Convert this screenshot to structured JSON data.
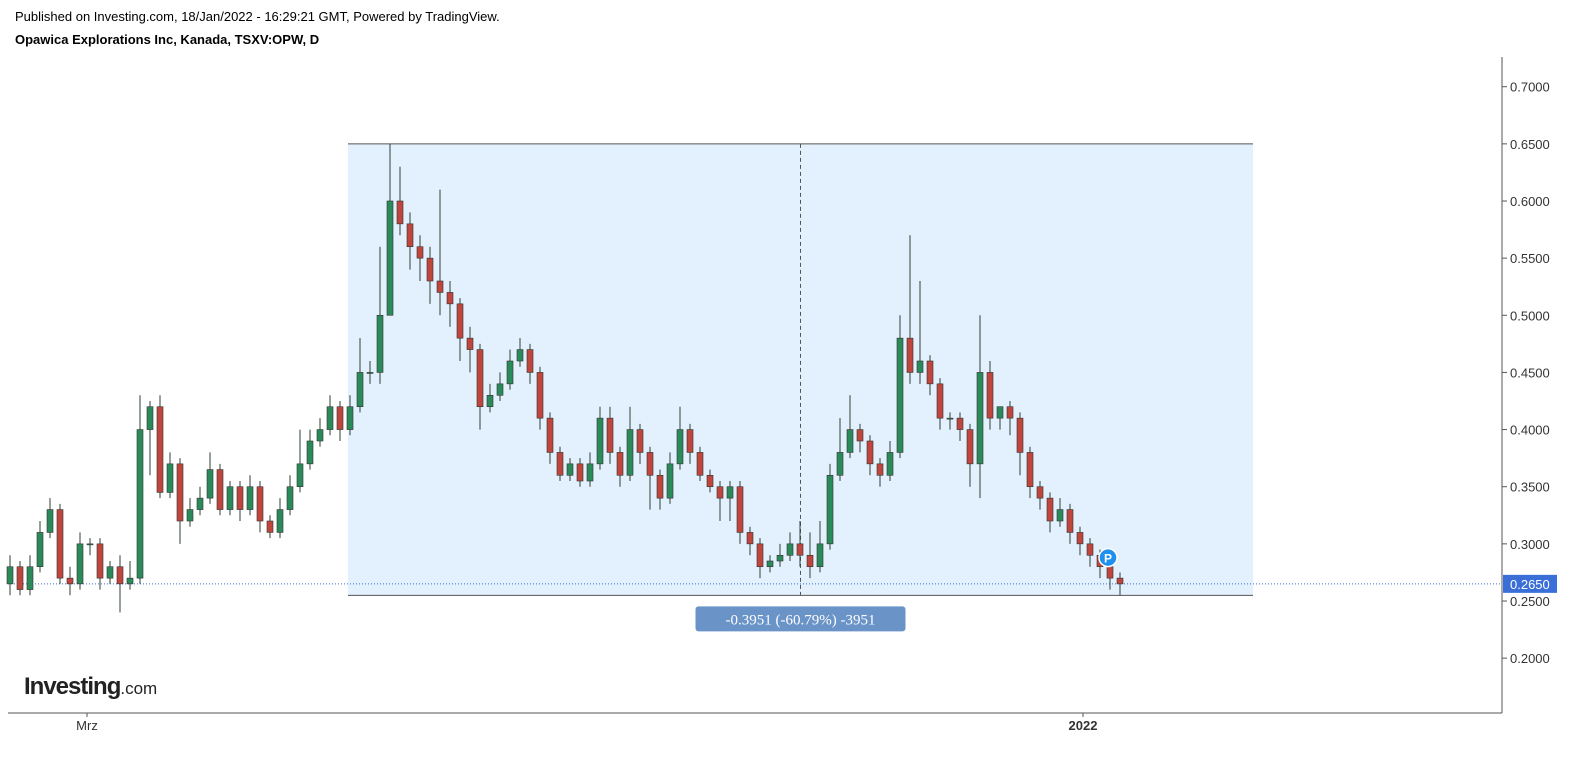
{
  "header": {
    "published": "Published on Investing.com, 18/Jan/2022 - 16:29:21 GMT, Powered by TradingView.",
    "title": "Opawica Explorations Inc, Kanada, TSXV:OPW, D"
  },
  "logo": {
    "brand": "Investing",
    "suffix": ".com"
  },
  "chart_data": {
    "type": "candlestick",
    "up_color": "#2a8a5a",
    "down_color": "#c0453c",
    "xlim": [
      -0.2,
      149.2
    ],
    "xticks": [
      {
        "value": 7.7,
        "label": "Mrz"
      },
      {
        "value": 107.3,
        "label": "2022"
      }
    ],
    "ylim": [
      0.152,
      0.726
    ],
    "yticks": [
      {
        "value": 0.2,
        "label": "0.2000"
      },
      {
        "value": 0.25,
        "label": "0.2500"
      },
      {
        "value": 0.3,
        "label": "0.3000"
      },
      {
        "value": 0.35,
        "label": "0.3500"
      },
      {
        "value": 0.4,
        "label": "0.4000"
      },
      {
        "value": 0.45,
        "label": "0.4500"
      },
      {
        "value": 0.5,
        "label": "0.5000"
      },
      {
        "value": 0.55,
        "label": "0.5500"
      },
      {
        "value": 0.6,
        "label": "0.6000"
      },
      {
        "value": 0.65,
        "label": "0.6500"
      },
      {
        "value": 0.7,
        "label": "0.7000"
      }
    ],
    "open": [
      0.265,
      0.28,
      0.26,
      0.28,
      0.31,
      0.33,
      0.27,
      0.265,
      0.3,
      0.3,
      0.27,
      0.28,
      0.265,
      0.27,
      0.4,
      0.42,
      0.345,
      0.37,
      0.32,
      0.33,
      0.34,
      0.365,
      0.33,
      0.35,
      0.33,
      0.35,
      0.32,
      0.31,
      0.33,
      0.35,
      0.37,
      0.39,
      0.4,
      0.42,
      0.4,
      0.42,
      0.45,
      0.45,
      0.5,
      0.6,
      0.58,
      0.56,
      0.55,
      0.53,
      0.52,
      0.51,
      0.48,
      0.47,
      0.42,
      0.43,
      0.44,
      0.46,
      0.47,
      0.45,
      0.41,
      0.38,
      0.36,
      0.37,
      0.355,
      0.37,
      0.41,
      0.38,
      0.36,
      0.4,
      0.38,
      0.36,
      0.34,
      0.37,
      0.4,
      0.38,
      0.36,
      0.35,
      0.34,
      0.35,
      0.31,
      0.3,
      0.28,
      0.285,
      0.29,
      0.3,
      0.29,
      0.28,
      0.3,
      0.36,
      0.38,
      0.4,
      0.39,
      0.37,
      0.36,
      0.38,
      0.48,
      0.45,
      0.46,
      0.44,
      0.41,
      0.41,
      0.4,
      0.37,
      0.45,
      0.41,
      0.42,
      0.41,
      0.38,
      0.35,
      0.34,
      0.32,
      0.33,
      0.31,
      0.3,
      0.29,
      0.28,
      0.27
    ],
    "high": [
      0.29,
      0.285,
      0.29,
      0.32,
      0.34,
      0.335,
      0.28,
      0.31,
      0.305,
      0.305,
      0.285,
      0.29,
      0.285,
      0.43,
      0.425,
      0.43,
      0.38,
      0.375,
      0.34,
      0.35,
      0.38,
      0.37,
      0.355,
      0.355,
      0.36,
      0.355,
      0.325,
      0.34,
      0.36,
      0.4,
      0.4,
      0.41,
      0.43,
      0.425,
      0.43,
      0.48,
      0.46,
      0.56,
      0.65,
      0.63,
      0.59,
      0.57,
      0.56,
      0.61,
      0.53,
      0.515,
      0.49,
      0.475,
      0.44,
      0.45,
      0.47,
      0.48,
      0.475,
      0.455,
      0.415,
      0.385,
      0.375,
      0.375,
      0.38,
      0.42,
      0.42,
      0.385,
      0.42,
      0.405,
      0.385,
      0.365,
      0.38,
      0.42,
      0.405,
      0.385,
      0.365,
      0.355,
      0.355,
      0.355,
      0.315,
      0.305,
      0.29,
      0.3,
      0.31,
      0.32,
      0.31,
      0.32,
      0.37,
      0.41,
      0.43,
      0.405,
      0.395,
      0.375,
      0.39,
      0.5,
      0.57,
      0.53,
      0.465,
      0.445,
      0.415,
      0.415,
      0.405,
      0.5,
      0.46,
      0.42,
      0.425,
      0.415,
      0.385,
      0.355,
      0.345,
      0.34,
      0.335,
      0.315,
      0.305,
      0.295,
      0.285,
      0.275
    ],
    "low": [
      0.255,
      0.255,
      0.255,
      0.275,
      0.305,
      0.265,
      0.255,
      0.26,
      0.29,
      0.26,
      0.265,
      0.24,
      0.26,
      0.265,
      0.36,
      0.34,
      0.34,
      0.3,
      0.315,
      0.325,
      0.335,
      0.325,
      0.325,
      0.32,
      0.325,
      0.31,
      0.305,
      0.305,
      0.325,
      0.345,
      0.365,
      0.385,
      0.395,
      0.39,
      0.395,
      0.415,
      0.44,
      0.44,
      0.5,
      0.57,
      0.54,
      0.53,
      0.51,
      0.5,
      0.49,
      0.46,
      0.45,
      0.4,
      0.415,
      0.425,
      0.435,
      0.455,
      0.44,
      0.4,
      0.37,
      0.355,
      0.355,
      0.35,
      0.35,
      0.365,
      0.37,
      0.35,
      0.355,
      0.37,
      0.33,
      0.33,
      0.335,
      0.365,
      0.37,
      0.355,
      0.345,
      0.32,
      0.32,
      0.3,
      0.29,
      0.27,
      0.275,
      0.28,
      0.285,
      0.28,
      0.27,
      0.275,
      0.295,
      0.355,
      0.375,
      0.38,
      0.36,
      0.35,
      0.355,
      0.375,
      0.44,
      0.44,
      0.43,
      0.4,
      0.4,
      0.39,
      0.35,
      0.34,
      0.4,
      0.4,
      0.395,
      0.36,
      0.34,
      0.33,
      0.31,
      0.315,
      0.3,
      0.29,
      0.28,
      0.27,
      0.26,
      0.255
    ],
    "close": [
      0.28,
      0.26,
      0.28,
      0.31,
      0.33,
      0.27,
      0.265,
      0.3,
      0.3,
      0.27,
      0.28,
      0.265,
      0.27,
      0.4,
      0.42,
      0.345,
      0.37,
      0.32,
      0.33,
      0.34,
      0.365,
      0.33,
      0.35,
      0.33,
      0.35,
      0.32,
      0.31,
      0.33,
      0.35,
      0.37,
      0.39,
      0.4,
      0.42,
      0.4,
      0.42,
      0.45,
      0.45,
      0.5,
      0.6,
      0.58,
      0.56,
      0.55,
      0.53,
      0.52,
      0.51,
      0.48,
      0.47,
      0.42,
      0.43,
      0.44,
      0.46,
      0.47,
      0.45,
      0.41,
      0.38,
      0.36,
      0.37,
      0.355,
      0.37,
      0.41,
      0.38,
      0.36,
      0.4,
      0.38,
      0.36,
      0.34,
      0.37,
      0.4,
      0.38,
      0.36,
      0.35,
      0.34,
      0.35,
      0.31,
      0.3,
      0.28,
      0.285,
      0.29,
      0.3,
      0.29,
      0.28,
      0.3,
      0.36,
      0.38,
      0.4,
      0.39,
      0.37,
      0.36,
      0.38,
      0.48,
      0.45,
      0.46,
      0.44,
      0.41,
      0.41,
      0.4,
      0.37,
      0.45,
      0.41,
      0.42,
      0.41,
      0.38,
      0.35,
      0.34,
      0.32,
      0.33,
      0.31,
      0.3,
      0.29,
      0.28,
      0.27,
      0.265
    ],
    "last_price": {
      "value": 0.265,
      "value_label": "0.2650",
      "color": "#3a6fd8"
    },
    "measure": {
      "x0": 33.8,
      "x1": 124.3,
      "from": 0.65,
      "to": 0.2549,
      "label": "-0.3951 (-60.79%) -3951",
      "fill": "#e3f0fd",
      "label_color": "#6a93c8"
    },
    "marker": {
      "x": 109.8,
      "y": 0.288,
      "label": "P",
      "color": "#1e90f0"
    }
  }
}
